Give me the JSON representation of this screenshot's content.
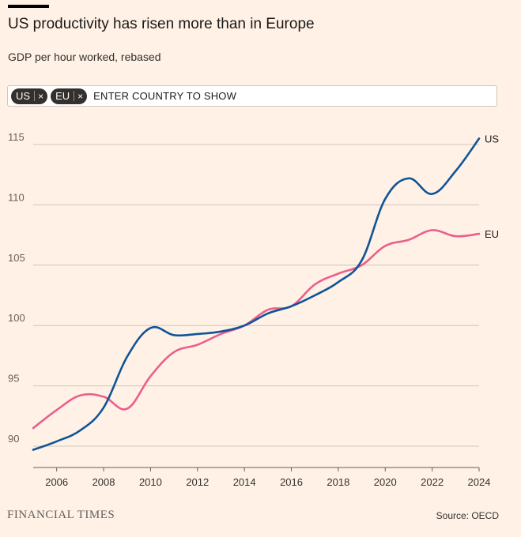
{
  "header": {
    "title": "US productivity has risen more than in Europe",
    "subtitle": "GDP per hour worked, rebased"
  },
  "selector": {
    "chips": [
      {
        "label": "US",
        "remove_glyph": "×"
      },
      {
        "label": "EU",
        "remove_glyph": "×"
      }
    ],
    "placeholder": "ENTER COUNTRY TO SHOW"
  },
  "chart_data": {
    "type": "line",
    "title": "US productivity has risen more than in Europe",
    "ylabel": "GDP per hour worked, rebased",
    "xlabel": "",
    "xlim": [
      2005,
      2024
    ],
    "ylim": [
      89,
      117
    ],
    "grid": true,
    "x_ticks": [
      2006,
      2008,
      2010,
      2012,
      2014,
      2016,
      2018,
      2020,
      2022,
      2024
    ],
    "y_ticks": [
      90,
      95,
      100,
      105,
      110,
      115
    ],
    "series": [
      {
        "name": "US",
        "color": "#0f5499",
        "x": [
          2005,
          2006,
          2007,
          2008,
          2009,
          2010,
          2011,
          2012,
          2013,
          2014,
          2015,
          2016,
          2017,
          2018,
          2019,
          2020,
          2021,
          2022,
          2023,
          2024
        ],
        "values": [
          89.7,
          90.4,
          91.3,
          93.2,
          97.4,
          99.8,
          99.2,
          99.3,
          99.5,
          100.0,
          101.0,
          101.6,
          102.5,
          103.6,
          105.4,
          110.5,
          112.2,
          110.9,
          112.8,
          115.5
        ]
      },
      {
        "name": "EU",
        "color": "#eb5e8d",
        "x": [
          2005,
          2006,
          2007,
          2008,
          2009,
          2010,
          2011,
          2012,
          2013,
          2014,
          2015,
          2016,
          2017,
          2018,
          2019,
          2020,
          2021,
          2022,
          2023,
          2024
        ],
        "values": [
          91.5,
          93.0,
          94.2,
          94.1,
          93.1,
          95.8,
          97.8,
          98.4,
          99.3,
          100.0,
          101.3,
          101.6,
          103.4,
          104.3,
          105.0,
          106.6,
          107.1,
          107.9,
          107.4,
          107.6
        ]
      }
    ]
  },
  "footer": {
    "brand": "FINANCIAL TIMES",
    "source": "Source: OECD"
  }
}
